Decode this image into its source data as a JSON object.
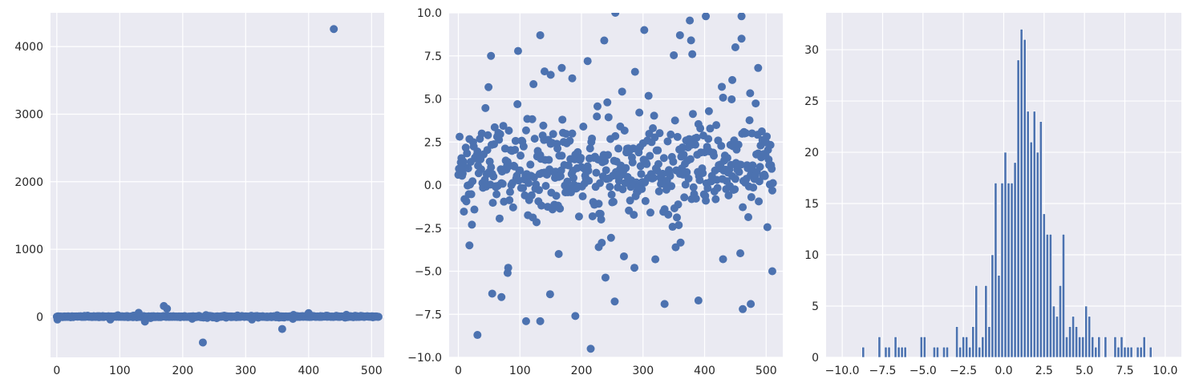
{
  "chart_data": [
    {
      "type": "scatter",
      "panel": "left",
      "title": "",
      "xlabel": "",
      "ylabel": "",
      "xlim": [
        -10,
        520
      ],
      "ylim": [
        -600,
        4500
      ],
      "xticks": [
        0,
        100,
        200,
        300,
        400,
        500
      ],
      "xtick_labels": [
        "0",
        "100",
        "200",
        "300",
        "400",
        "500"
      ],
      "yticks": [
        0,
        1000,
        2000,
        3000,
        4000
      ],
      "ytick_labels": [
        "0",
        "1000",
        "2000",
        "3000",
        "4000"
      ],
      "grid": true,
      "n_points": 512,
      "notable_points": [
        {
          "x": 440,
          "y": 4260
        },
        {
          "x": 232,
          "y": -380
        },
        {
          "x": 358,
          "y": -180
        },
        {
          "x": 170,
          "y": 160
        },
        {
          "x": 175,
          "y": 120
        },
        {
          "x": 130,
          "y": 60
        },
        {
          "x": 400,
          "y": 55
        },
        {
          "x": 140,
          "y": -70
        },
        {
          "x": 1,
          "y": -40
        },
        {
          "x": 85,
          "y": -40
        },
        {
          "x": 310,
          "y": -40
        },
        {
          "x": 375,
          "y": -30
        }
      ]
    },
    {
      "type": "scatter",
      "panel": "middle",
      "title": "",
      "xlabel": "",
      "ylabel": "",
      "xlim": [
        -15,
        527
      ],
      "ylim": [
        -10,
        10
      ],
      "xticks": [
        0,
        100,
        200,
        300,
        400,
        500
      ],
      "xtick_labels": [
        "0",
        "100",
        "200",
        "300",
        "400",
        "500"
      ],
      "yticks": [
        -10,
        -7.5,
        -5,
        -2.5,
        0,
        2.5,
        5,
        7.5,
        10
      ],
      "ytick_labels": [
        "−10.0",
        "−7.5",
        "−5.0",
        "−2.5",
        "0.0",
        "2.5",
        "5.0",
        "7.5",
        "10.0"
      ],
      "grid": true,
      "notable_points": [
        {
          "x": 31,
          "y": -8.7
        },
        {
          "x": 110,
          "y": -7.9
        },
        {
          "x": 133,
          "y": -7.9
        },
        {
          "x": 190,
          "y": -7.6
        },
        {
          "x": 462,
          "y": -7.2
        },
        {
          "x": 475,
          "y": -6.9
        },
        {
          "x": 335,
          "y": -6.9
        },
        {
          "x": 390,
          "y": -6.7
        },
        {
          "x": 70,
          "y": -6.5
        },
        {
          "x": 55,
          "y": -6.3
        },
        {
          "x": 80,
          "y": -5.1
        },
        {
          "x": 81,
          "y": -4.8
        },
        {
          "x": 286,
          "y": -4.8
        },
        {
          "x": 510,
          "y": -5.0
        },
        {
          "x": 430,
          "y": -4.3
        },
        {
          "x": 163,
          "y": -4.0
        },
        {
          "x": 228,
          "y": -3.6
        },
        {
          "x": 18,
          "y": -3.5
        },
        {
          "x": 255,
          "y": 10.0
        },
        {
          "x": 402,
          "y": 9.8
        },
        {
          "x": 302,
          "y": 9.0
        },
        {
          "x": 133,
          "y": 8.7
        },
        {
          "x": 360,
          "y": 8.7
        },
        {
          "x": 460,
          "y": 8.5
        },
        {
          "x": 378,
          "y": 8.4
        },
        {
          "x": 450,
          "y": 8.0
        },
        {
          "x": 380,
          "y": 7.6
        },
        {
          "x": 53,
          "y": 7.5
        },
        {
          "x": 210,
          "y": 7.2
        },
        {
          "x": 168,
          "y": 6.8
        },
        {
          "x": 487,
          "y": 6.8
        },
        {
          "x": 140,
          "y": 6.6
        },
        {
          "x": 150,
          "y": 6.4
        },
        {
          "x": 185,
          "y": 6.2
        },
        {
          "x": 445,
          "y": 6.1
        }
      ]
    },
    {
      "type": "bar",
      "subtype": "histogram",
      "panel": "right",
      "title": "",
      "xlabel": "",
      "ylabel": "",
      "xlim": [
        -11,
        11
      ],
      "ylim": [
        0,
        33.6
      ],
      "xticks": [
        -10,
        -7.5,
        -5,
        -2.5,
        0,
        2.5,
        5,
        7.5,
        10
      ],
      "xtick_labels": [
        "−10.0",
        "−7.5",
        "−5.0",
        "−2.5",
        "0.0",
        "2.5",
        "5.0",
        "7.5",
        "10.0"
      ],
      "yticks": [
        0,
        5,
        10,
        15,
        20,
        25,
        30
      ],
      "ytick_labels": [
        "0",
        "5",
        "10",
        "15",
        "20",
        "25",
        "30"
      ],
      "grid": true,
      "bin_width": 0.2,
      "bins": [
        [
          -8.8,
          1
        ],
        [
          -7.8,
          2
        ],
        [
          -7.4,
          1
        ],
        [
          -7.2,
          1
        ],
        [
          -6.8,
          2
        ],
        [
          -6.6,
          1
        ],
        [
          -6.4,
          1
        ],
        [
          -6.2,
          1
        ],
        [
          -5.2,
          2
        ],
        [
          -5.0,
          2
        ],
        [
          -4.4,
          1
        ],
        [
          -4.2,
          1
        ],
        [
          -3.8,
          1
        ],
        [
          -3.6,
          1
        ],
        [
          -3.0,
          3
        ],
        [
          -2.8,
          1
        ],
        [
          -2.6,
          2
        ],
        [
          -2.4,
          2
        ],
        [
          -2.2,
          1
        ],
        [
          -2.0,
          3
        ],
        [
          -1.8,
          7
        ],
        [
          -1.6,
          1
        ],
        [
          -1.4,
          2
        ],
        [
          -1.2,
          7
        ],
        [
          -1.0,
          3
        ],
        [
          -0.8,
          10
        ],
        [
          -0.6,
          17
        ],
        [
          -0.4,
          8
        ],
        [
          -0.2,
          17
        ],
        [
          0.0,
          20
        ],
        [
          0.2,
          17
        ],
        [
          0.4,
          17
        ],
        [
          0.6,
          19
        ],
        [
          0.8,
          29
        ],
        [
          1.0,
          32
        ],
        [
          1.2,
          31
        ],
        [
          1.4,
          24
        ],
        [
          1.6,
          21
        ],
        [
          1.8,
          24
        ],
        [
          2.0,
          20
        ],
        [
          2.2,
          23
        ],
        [
          2.4,
          14
        ],
        [
          2.6,
          12
        ],
        [
          2.8,
          12
        ],
        [
          3.0,
          5
        ],
        [
          3.2,
          4
        ],
        [
          3.4,
          7
        ],
        [
          3.6,
          12
        ],
        [
          3.8,
          2
        ],
        [
          4.0,
          3
        ],
        [
          4.2,
          4
        ],
        [
          4.4,
          3
        ],
        [
          4.6,
          2
        ],
        [
          4.8,
          2
        ],
        [
          5.0,
          5
        ],
        [
          5.2,
          4
        ],
        [
          5.4,
          2
        ],
        [
          5.6,
          1
        ],
        [
          5.8,
          2
        ],
        [
          6.2,
          2
        ],
        [
          6.8,
          2
        ],
        [
          7.0,
          1
        ],
        [
          7.2,
          2
        ],
        [
          7.4,
          1
        ],
        [
          7.6,
          1
        ],
        [
          7.8,
          1
        ],
        [
          8.2,
          1
        ],
        [
          8.4,
          1
        ],
        [
          8.6,
          2
        ],
        [
          9.0,
          1
        ]
      ]
    }
  ],
  "colors": {
    "point": "#4c72b0",
    "bar": "#4c72b0",
    "axes_bg": "#eaeaf2",
    "grid": "#ffffff",
    "tick_text": "#262626"
  }
}
